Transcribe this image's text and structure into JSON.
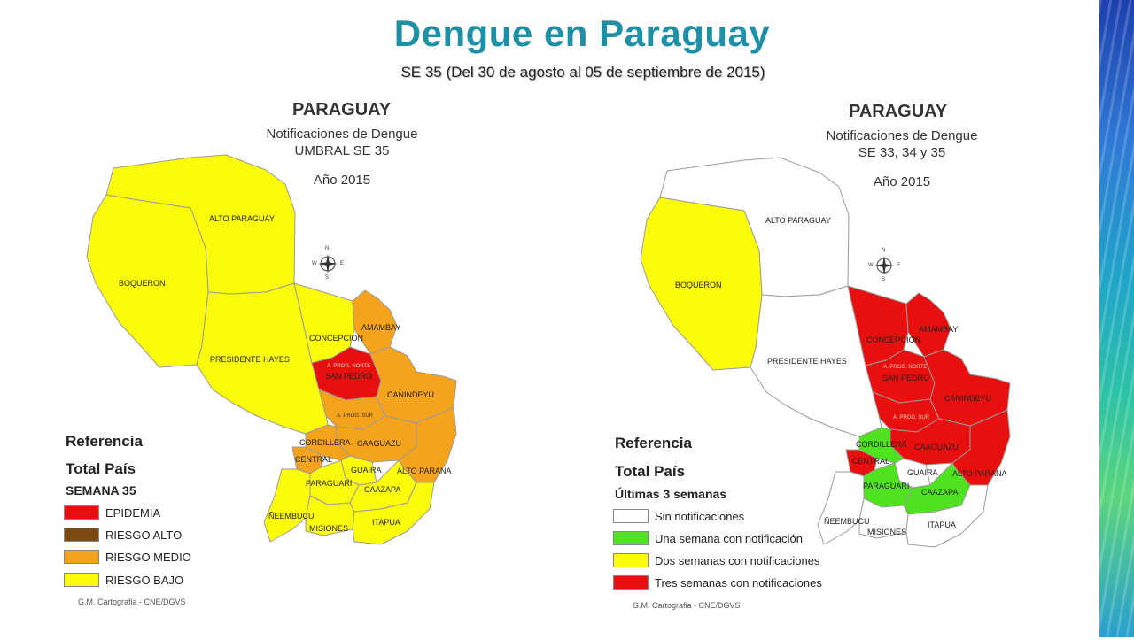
{
  "title": "Dengue en Paraguay",
  "subtitle": "SE 35 (Del  30 de agosto al 05 de septiembre de 2015)",
  "map_left": {
    "country": "PARAGUAY",
    "line1": "Notificaciones de Dengue",
    "line2": "UMBRAL SE 35",
    "year": "Año 2015",
    "reference_title": "Referencia",
    "total_title": "Total País",
    "week_title": "SEMANA 35",
    "legend": [
      {
        "label": "EPIDEMIA",
        "color": "#e8100e"
      },
      {
        "label": "RIESGO ALTO",
        "color": "#7a4a12"
      },
      {
        "label": "RIESGO MEDIO",
        "color": "#f5a31c"
      },
      {
        "label": "RIESGO BAJO",
        "color": "#fcfc0a"
      }
    ],
    "credit": "G.M. Cartografia - CNE/DGVS",
    "labels": {
      "alto_paraguay": "ALTO PARAGUAY",
      "boqueron": "BOQUERON",
      "presidente_hayes": "PRESIDENTE HAYES",
      "concepcion": "CONCEPCION",
      "amambay": "AMAMBAY",
      "a_prog_norte": "A. PROG. NORTE",
      "san_pedro": "SAN PEDRO",
      "canindeyu": "CANINDEYU",
      "a_prog_sur": "A. PROG. SUR",
      "cordillera": "CORDILLERA",
      "caaguazu": "CAAGUAZU",
      "central": "CENTRAL",
      "guaira": "GUAIRA",
      "alto_parana": "ALTO PARANA",
      "paraguari": "PARAGUARI",
      "caazapa": "CAAZAPA",
      "neembucu": "ÑEEMBUCU",
      "misiones": "MISIONES",
      "itapua": "ITAPUA"
    }
  },
  "map_right": {
    "country": "PARAGUAY",
    "line1": "Notificaciones de Dengue",
    "line2": "SE 33, 34 y 35",
    "year": "Año 2015",
    "reference_title": "Referencia",
    "total_title": "Total País",
    "week_title": "Últimas 3 semanas",
    "legend": [
      {
        "label": "Sin notificaciones",
        "color": "#ffffff"
      },
      {
        "label": "Una semana con notificación",
        "color": "#4fe31f"
      },
      {
        "label": "Dos semanas con notificaciones",
        "color": "#fcfc0a"
      },
      {
        "label": "Tres semanas con notificaciones",
        "color": "#e8100e"
      }
    ],
    "credit": "G.M. Cartografia - CNE/DGVS",
    "labels": {
      "alto_paraguay": "ALTO PARAGUAY",
      "boqueron": "BOQUERON",
      "presidente_hayes": "PRESIDENTE HAYES",
      "concepcion": "CONCEPCION",
      "amambay": "AMAMBAY",
      "a_prog_norte": "A. PROG. NORTE",
      "san_pedro": "SAN PEDRO",
      "canindeyu": "CANINDEYU",
      "a_prog_sur": "A. PROG. SUR",
      "cordillera": "CORDILLERA",
      "caaguazu": "CAAGUAZU",
      "central": "CENTRAL",
      "guaira": "GUAIRA",
      "alto_parana": "ALTO PARANA",
      "paraguari": "PARAGUARI",
      "caazapa": "CAAZAPA",
      "neembucu": "ÑEEMBUCU",
      "misiones": "MISIONES",
      "itapua": "ITAPUA"
    }
  },
  "compass": {
    "n": "N",
    "s": "S",
    "e": "E",
    "w": "W"
  },
  "region_colors": {
    "left": {
      "alto_paraguay": "#fcfc0a",
      "boqueron": "#fcfc0a",
      "presidente_hayes": "#fcfc0a",
      "concepcion": "#fcfc0a",
      "amambay": "#f5a31c",
      "san_pedro_norte": "#e8100e",
      "san_pedro_sur": "#f5a31c",
      "canindeyu": "#f5a31c",
      "caaguazu": "#f5a31c",
      "alto_parana": "#f5a31c",
      "cordillera": "#f5a31c",
      "central": "#f5a31c",
      "guaira": "#fcfc0a",
      "paraguari": "#fcfc0a",
      "caazapa": "#fcfc0a",
      "neembucu": "#fcfc0a",
      "misiones": "#fcfc0a",
      "itapua": "#fcfc0a"
    },
    "right": {
      "alto_paraguay": "#ffffff",
      "boqueron": "#fcfc0a",
      "presidente_hayes": "#ffffff",
      "concepcion": "#e8100e",
      "amambay": "#e8100e",
      "san_pedro_norte": "#e8100e",
      "san_pedro_sur": "#e8100e",
      "canindeyu": "#e8100e",
      "caaguazu": "#e8100e",
      "alto_parana": "#e8100e",
      "cordillera": "#4fe31f",
      "central": "#e8100e",
      "guaira": "#ffffff",
      "paraguari": "#4fe31f",
      "caazapa": "#4fe31f",
      "neembucu": "#ffffff",
      "misiones": "#ffffff",
      "itapua": "#ffffff"
    }
  }
}
